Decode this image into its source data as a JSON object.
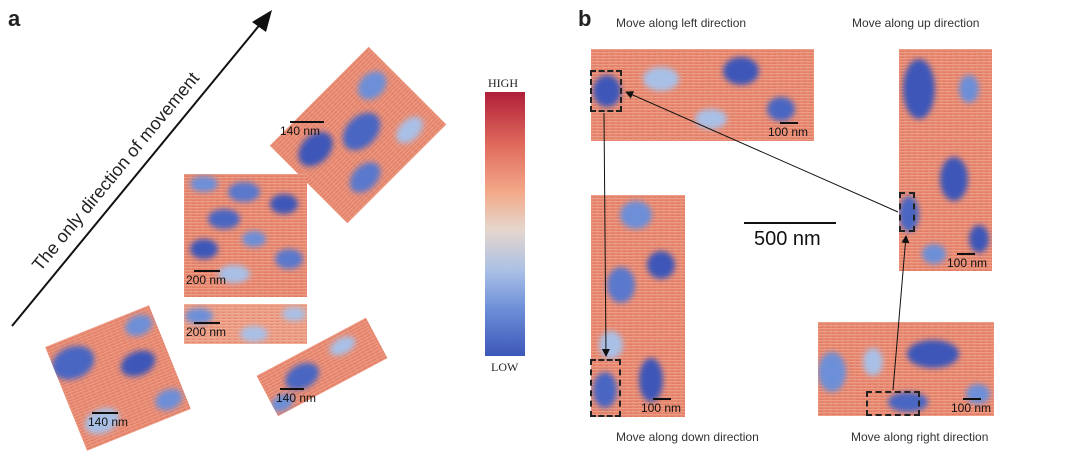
{
  "panel_a": {
    "label": "a",
    "arrow_text": "The only direction of movement",
    "scale_labels": [
      "140 nm",
      "200 nm",
      "200 nm",
      "140 nm",
      "140 nm"
    ]
  },
  "colorbar": {
    "high": "HIGH",
    "low": "LOW"
  },
  "panel_b": {
    "label": "b",
    "captions": {
      "left": "Move along left direction",
      "up": "Move along up direction",
      "down": "Move along down direction",
      "right": "Move along right direction"
    },
    "center_scale": "500 nm",
    "scale_labels": [
      "100 nm",
      "100 nm",
      "100 nm",
      "100 nm"
    ]
  },
  "colors": {
    "high": "#b01f3a",
    "mid_warm": "#e8886e",
    "neutral": "#e6d6cc",
    "low": "#3c57b8"
  }
}
